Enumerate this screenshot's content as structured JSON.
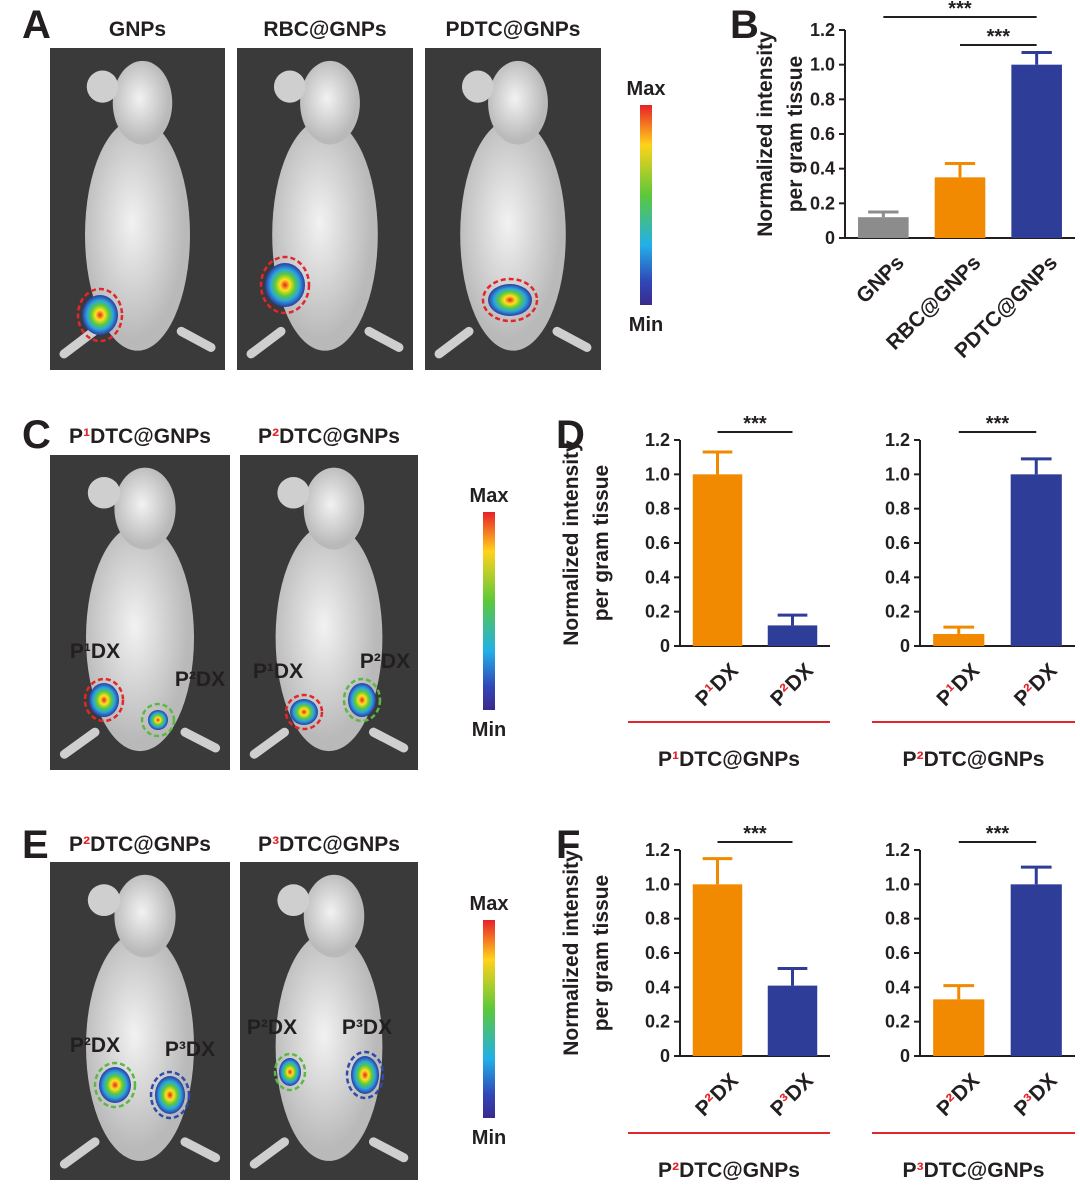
{
  "panel_labels": [
    "A",
    "B",
    "C",
    "D",
    "E",
    "F"
  ],
  "imaging": [
    {
      "titles": [
        "GNPs",
        "RBC@GNPs",
        "PDTC@GNPs"
      ],
      "colorbar": [
        "Max",
        "Min"
      ]
    },
    {
      "titles": [
        "P¹DTC@GNPs",
        "P²DTC@GNPs"
      ],
      "colorbar": [
        "Max",
        "Min"
      ],
      "roi_labels": [
        [
          "P¹DX",
          "P²DX"
        ],
        [
          "P¹DX",
          "P²DX"
        ]
      ],
      "roi_label_colors": [
        [
          "#e3262b",
          "#5cb840"
        ],
        [
          "#e3262b",
          "#5cb840"
        ]
      ]
    },
    {
      "titles": [
        "P²DTC@GNPs",
        "P³DTC@GNPs"
      ],
      "colorbar": [
        "Max",
        "Min"
      ],
      "roi_labels": [
        [
          "P²DX",
          "P³DX"
        ],
        [
          "P²DX",
          "P³DX"
        ]
      ],
      "roi_label_colors": [
        [
          "#5cb840",
          "#2f4aa8"
        ],
        [
          "#5cb840",
          "#2f4aa8"
        ]
      ]
    }
  ],
  "chart_data": [
    {
      "type": "bar",
      "y_label": [
        "Normalized intensity",
        "per gram tissue"
      ],
      "categories": [
        "GNPs",
        "RBC@GNPs",
        "PDTC@GNPs"
      ],
      "values": [
        0.12,
        0.35,
        1.0
      ],
      "errors": [
        0.03,
        0.08,
        0.07
      ],
      "colors": [
        "#8c8c8c",
        "#f18a00",
        "#2e3d98"
      ],
      "ylim": [
        0,
        1.2
      ],
      "yticks": [
        0,
        0.2,
        0.4,
        0.6,
        0.8,
        {
          "value": 1,
          "label": "1.0"
        },
        1.2
      ],
      "significance": [
        {
          "from": 0,
          "to": 2,
          "label": "***"
        },
        {
          "from": 1,
          "to": 2,
          "label": "***"
        }
      ]
    },
    {
      "type": "bar",
      "y_label": [
        "Normalized intensity",
        "per gram tissue"
      ],
      "categories": [
        "P¹DX",
        "P²DX"
      ],
      "values": [
        1.0,
        0.12
      ],
      "errors": [
        0.13,
        0.06
      ],
      "colors": [
        "#f18a00",
        "#2e3d98"
      ],
      "ylim": [
        0,
        1.2
      ],
      "yticks": [
        0,
        0.2,
        0.4,
        0.6,
        0.8,
        {
          "value": 1,
          "label": "1.0"
        },
        1.2
      ],
      "significance": [
        {
          "from": 0,
          "to": 1,
          "label": "***"
        }
      ],
      "group_label": "P¹DTC@GNPs",
      "group_line_color": "#e3262b"
    },
    {
      "type": "bar",
      "categories": [
        "P¹DX",
        "P²DX"
      ],
      "values": [
        0.07,
        1.0
      ],
      "errors": [
        0.04,
        0.09
      ],
      "colors": [
        "#f18a00",
        "#2e3d98"
      ],
      "ylim": [
        0,
        1.2
      ],
      "yticks": [
        0,
        0.2,
        0.4,
        0.6,
        0.8,
        {
          "value": 1,
          "label": "1.0"
        },
        1.2
      ],
      "significance": [
        {
          "from": 0,
          "to": 1,
          "label": "***"
        }
      ],
      "group_label": "P²DTC@GNPs",
      "group_line_color": "#e3262b"
    },
    {
      "type": "bar",
      "y_label": [
        "Normalized intensity",
        "per gram tissue"
      ],
      "categories": [
        "P²DX",
        "P³DX"
      ],
      "values": [
        1.0,
        0.41
      ],
      "errors": [
        0.15,
        0.1
      ],
      "colors": [
        "#f18a00",
        "#2e3d98"
      ],
      "ylim": [
        0,
        1.2
      ],
      "yticks": [
        0,
        0.2,
        0.4,
        0.6,
        0.8,
        {
          "value": 1,
          "label": "1.0"
        },
        1.2
      ],
      "significance": [
        {
          "from": 0,
          "to": 1,
          "label": "***"
        }
      ],
      "group_label": "P²DTC@GNPs",
      "group_line_color": "#e3262b"
    },
    {
      "type": "bar",
      "categories": [
        "P²DX",
        "P³DX"
      ],
      "values": [
        0.33,
        1.0
      ],
      "errors": [
        0.08,
        0.1
      ],
      "colors": [
        "#f18a00",
        "#2e3d98"
      ],
      "ylim": [
        0,
        1.2
      ],
      "yticks": [
        0,
        0.2,
        0.4,
        0.6,
        0.8,
        {
          "value": 1,
          "label": "1.0"
        },
        1.2
      ],
      "significance": [
        {
          "from": 0,
          "to": 1,
          "label": "***"
        }
      ],
      "group_label": "P³DTC@GNPs",
      "group_line_color": "#e3262b"
    }
  ]
}
